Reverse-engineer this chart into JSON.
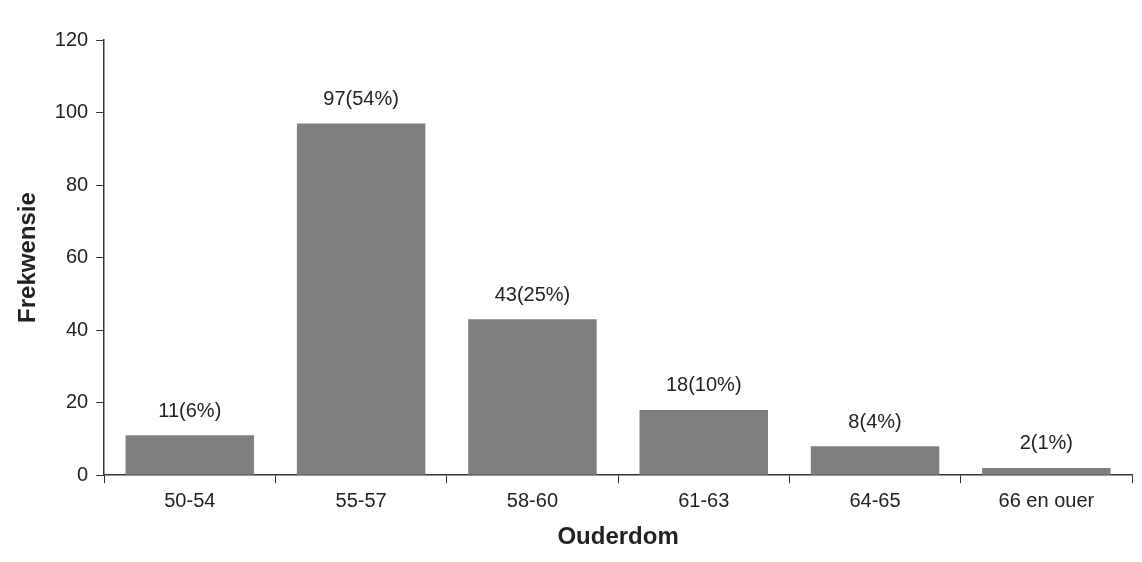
{
  "chart_data": {
    "type": "bar",
    "xlabel": "Ouderdom",
    "ylabel": "Frekwensie",
    "categories": [
      "50-54",
      "55-57",
      "58-60",
      "61-63",
      "64-65",
      "66 en ouer"
    ],
    "values": [
      11,
      97,
      43,
      18,
      8,
      2
    ],
    "value_labels": [
      "11(6%)",
      "97(54%)",
      "43(25%)",
      "18(10%)",
      "8(4%)",
      "2(1%)"
    ],
    "color": "#7f7f7f",
    "ylim": [
      0,
      120
    ],
    "yticks": [
      0,
      20,
      40,
      60,
      80,
      100,
      120
    ],
    "grid": false,
    "legend": false
  }
}
